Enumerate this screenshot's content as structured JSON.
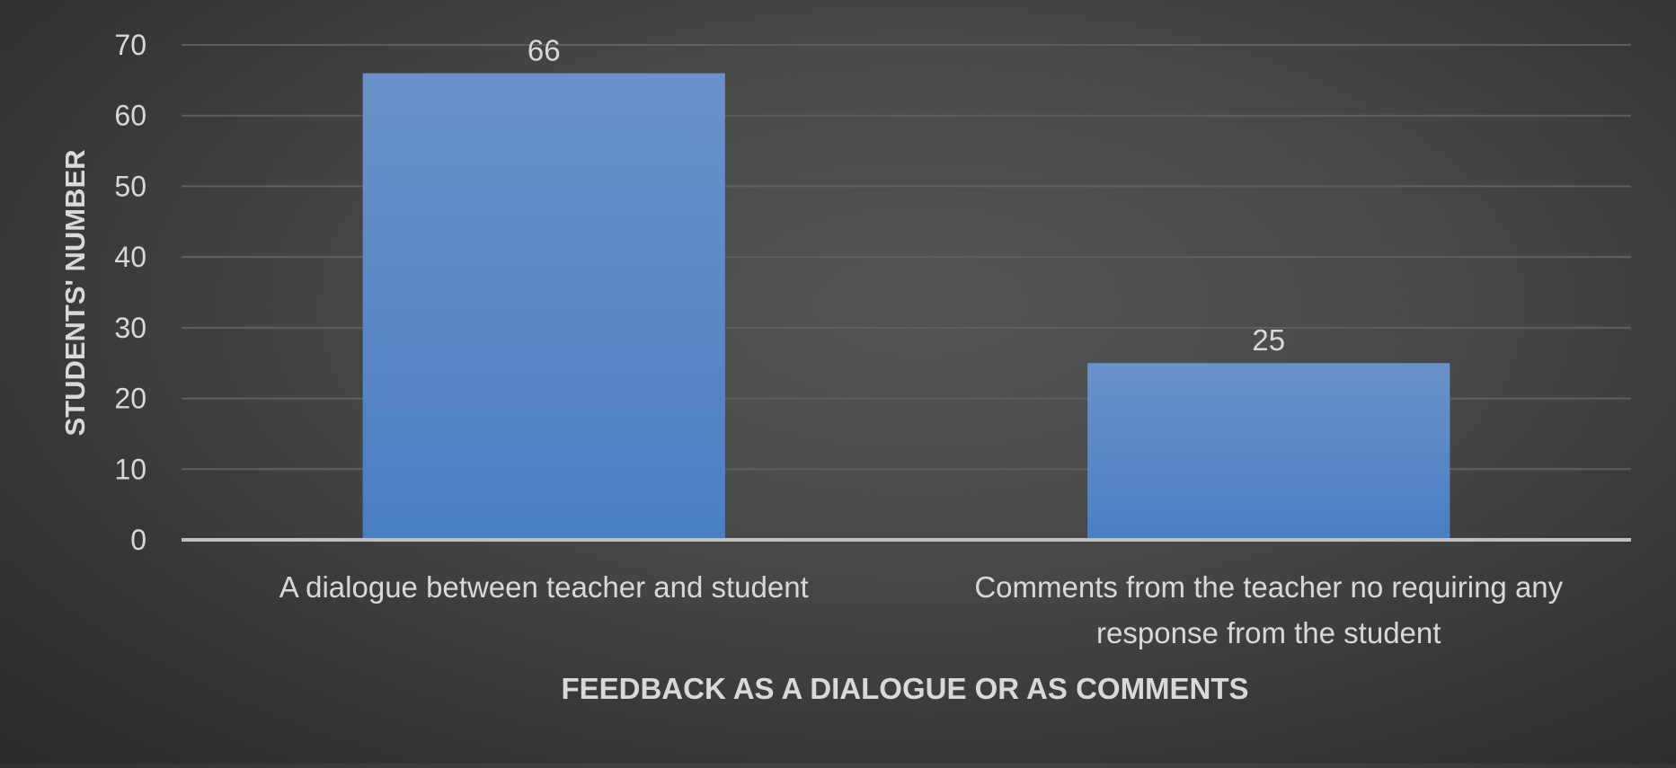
{
  "chart_data": {
    "type": "bar",
    "title": "",
    "xlabel": "FEEDBACK AS A DIALOGUE OR AS COMMENTS",
    "ylabel": "STUDENTS' NUMBER",
    "categories": [
      [
        "A dialogue between teacher and student"
      ],
      [
        "Comments from the teacher no requiring any",
        "response from the student"
      ]
    ],
    "values": [
      66,
      25
    ],
    "data_labels": [
      "66",
      "25"
    ],
    "ylim": [
      0,
      70
    ],
    "yticks": [
      0,
      10,
      20,
      30,
      40,
      50,
      60,
      70
    ],
    "grid": true,
    "legend": "none",
    "colors": {
      "bar_top": "#6b91c9",
      "bar_bottom": "#4a7fc4",
      "text": "#d9d9d9",
      "gridline": "#5f5f5f",
      "axis": "#bfbfbf"
    }
  }
}
